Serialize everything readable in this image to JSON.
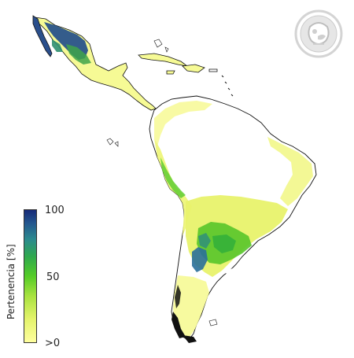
{
  "legend": {
    "title": "Pertenencia [%]",
    "max_label": "100",
    "mid_label": "50",
    "min_label": ">0",
    "colors": [
      "#ffff9e",
      "#e3f36a",
      "#a8e23f",
      "#54cc27",
      "#2fa84e",
      "#2b8a8f",
      "#24578f",
      "#162a78"
    ]
  },
  "map": {
    "land_color": "#ffffff",
    "low_color": "#f7fa9a",
    "outline_color": "#111111",
    "region": "Latin America"
  },
  "logo": {
    "icon": "circular-seal-icon",
    "color": "#d4d4d4"
  }
}
